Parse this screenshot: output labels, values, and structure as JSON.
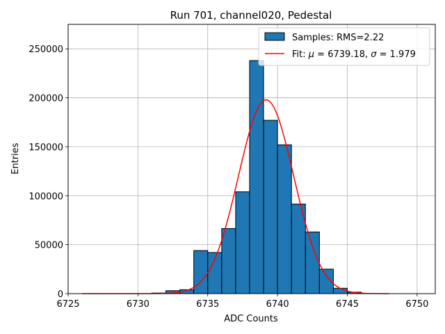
{
  "chart_data": {
    "type": "bar",
    "title": "Run 701, channel020, Pedestal",
    "xlabel": "ADC Counts",
    "ylabel": "Entries",
    "xlim": [
      6725,
      6751.3
    ],
    "ylim": [
      0,
      275000
    ],
    "xticks": [
      6725,
      6730,
      6735,
      6740,
      6745,
      6750
    ],
    "yticks": [
      0,
      50000,
      100000,
      150000,
      200000,
      250000
    ],
    "grid": true,
    "legend_position": "top-right",
    "bin_width": 1,
    "bins": [
      6731,
      6732,
      6733,
      6734,
      6735,
      6736,
      6737,
      6738,
      6739,
      6740,
      6741,
      6742,
      6743,
      6744,
      6745
    ],
    "counts": [
      600,
      3000,
      4000,
      44000,
      42000,
      66500,
      104000,
      238000,
      177000,
      152000,
      91500,
      63000,
      25000,
      5500,
      1500
    ],
    "fit": {
      "mu": 6739.18,
      "sigma": 1.979,
      "peak": 198000,
      "xrange": [
        6726,
        6748
      ]
    },
    "legend": [
      {
        "label": "Samples: RMS=2.22",
        "kind": "patch",
        "color": "#1f77b4"
      },
      {
        "label_prefix": "Fit: ",
        "mu_symbol": "μ",
        "mu_text": " = 6739.18, ",
        "sigma_symbol": "σ",
        "sigma_text": " = 1.979",
        "kind": "line",
        "color": "#ff0000"
      }
    ],
    "colors": {
      "bar": "#1f77b4",
      "edge": "#000000",
      "fit": "#ff0000",
      "grid": "#b0b0b0"
    }
  }
}
